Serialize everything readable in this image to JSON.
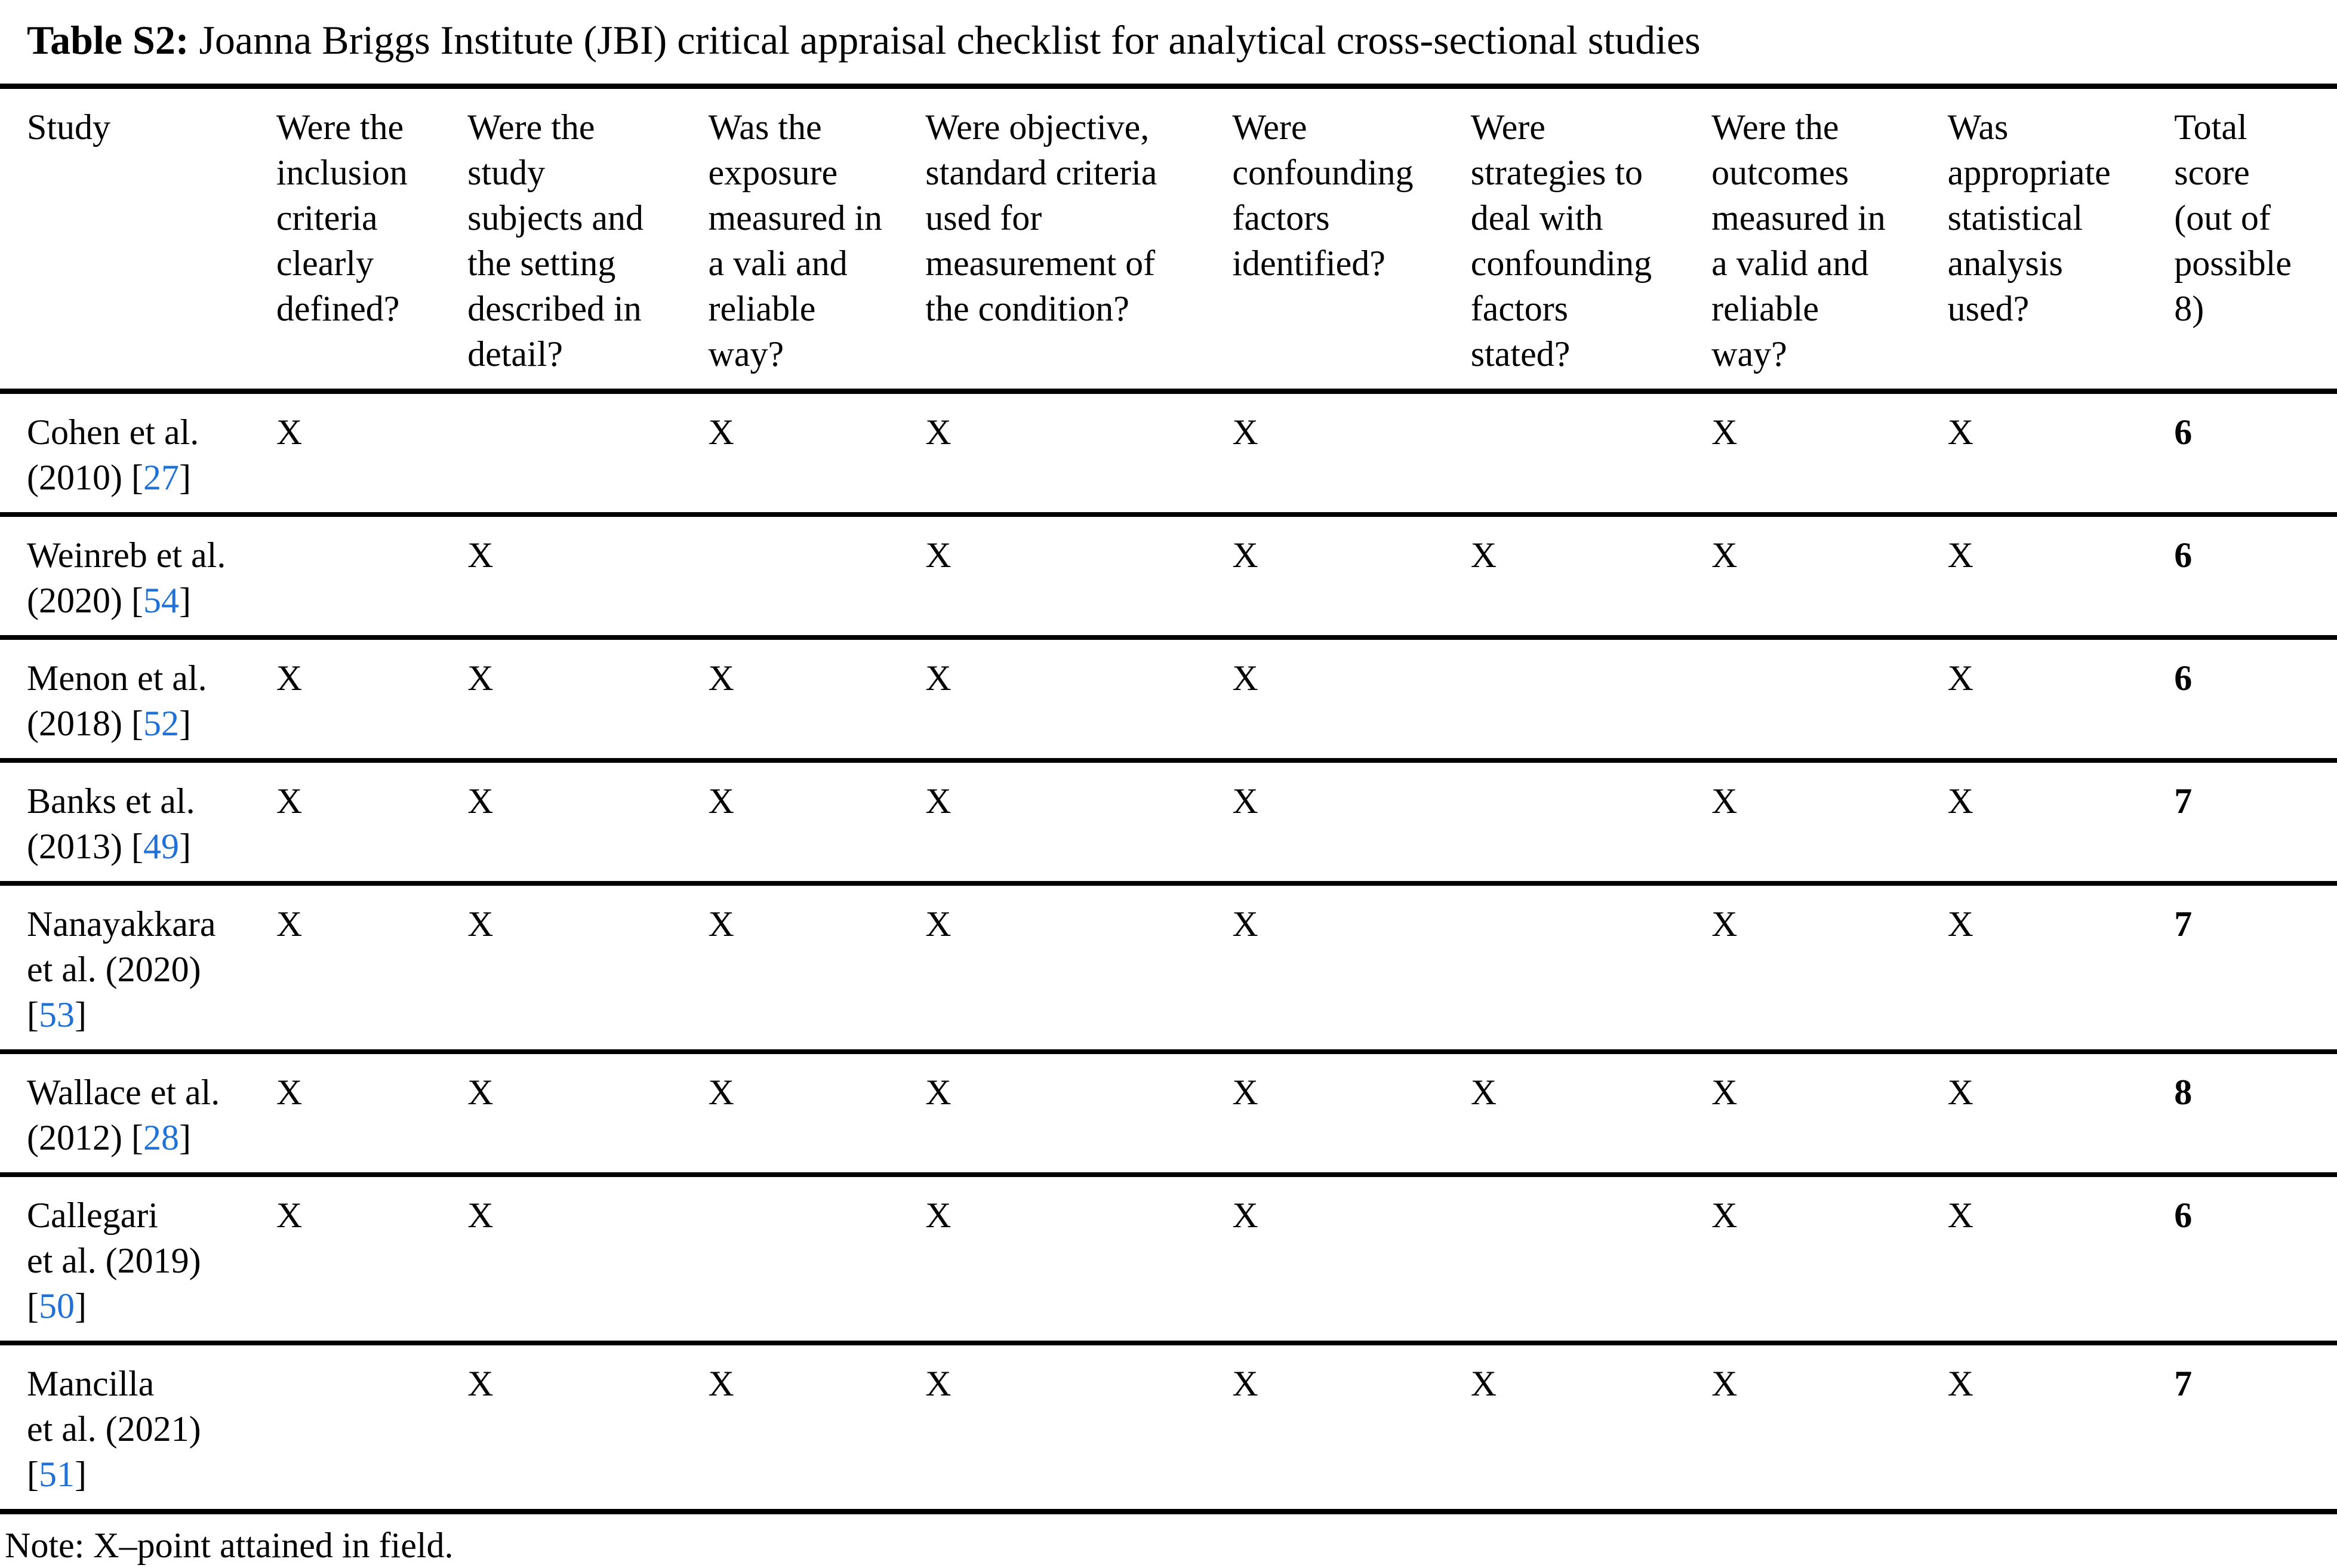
{
  "title": {
    "bold": "Table S2:",
    "rest": " Joanna Briggs Institute (JBI) critical appraisal checklist for analytical cross-sectional studies"
  },
  "colors": {
    "text": "#000000",
    "background": "#FFFFFF",
    "rule": "#000000",
    "reference_link": "#1F71D7"
  },
  "mark_symbol": "X",
  "table": {
    "columns": [
      "Study",
      "Were the\ninclusion\ncriteria\nclearly\ndefined?",
      "Were the\nstudy\nsubjects and\nthe setting\ndescribed in\ndetail?",
      "Was the\nexposure\nmeasured in\na vali and\nreliable\nway?",
      "Were objective,\nstandard criteria\nused for\nmeasurement of\nthe condition?",
      "Were\nconfounding\nfactors\nidentified?",
      "Were\nstrategies to\ndeal with\nconfounding\nfactors\nstated?",
      "Were the\noutcomes\nmeasured in\na valid and\nreliable\nway?",
      "Was\nappropriate\nstatistical\nanalysis\nused?",
      "Total\nscore\n(out of\npossible\n8)"
    ],
    "rows": [
      {
        "study_prefix": "Cohen et al.\n(2010) [",
        "reference": "27",
        "study_suffix": "]",
        "marks": [
          "X",
          "",
          "X",
          "X",
          "X",
          "",
          "X",
          "X"
        ],
        "total": "6"
      },
      {
        "study_prefix": "Weinreb et al.\n(2020) [",
        "reference": "54",
        "study_suffix": "]",
        "marks": [
          "",
          "X",
          "",
          "X",
          "X",
          "X",
          "X",
          "X"
        ],
        "total": "6"
      },
      {
        "study_prefix": "Menon et al.\n(2018) [",
        "reference": "52",
        "study_suffix": "]",
        "marks": [
          "X",
          "X",
          "X",
          "X",
          "X",
          "",
          "",
          "X"
        ],
        "total": "6"
      },
      {
        "study_prefix": "Banks et al.\n(2013) [",
        "reference": "49",
        "study_suffix": "]",
        "marks": [
          "X",
          "X",
          "X",
          "X",
          "X",
          "",
          "X",
          "X"
        ],
        "total": "7"
      },
      {
        "study_prefix": "Nanayakkara\net al. (2020)\n[",
        "reference": "53",
        "study_suffix": "]",
        "marks": [
          "X",
          "X",
          "X",
          "X",
          "X",
          "",
          "X",
          "X"
        ],
        "total": "7"
      },
      {
        "study_prefix": "Wallace et al.\n(2012) [",
        "reference": "28",
        "study_suffix": "]",
        "marks": [
          "X",
          "X",
          "X",
          "X",
          "X",
          "X",
          "X",
          "X"
        ],
        "total": "8"
      },
      {
        "study_prefix": "Callegari\net al. (2019)\n[",
        "reference": "50",
        "study_suffix": "]",
        "marks": [
          "X",
          "X",
          "",
          "X",
          "X",
          "",
          "X",
          "X"
        ],
        "total": "6"
      },
      {
        "study_prefix": "Mancilla\net al. (2021)\n[",
        "reference": "51",
        "study_suffix": "]",
        "marks": [
          "",
          "X",
          "X",
          "X",
          "X",
          "X",
          "X",
          "X"
        ],
        "total": "7"
      }
    ]
  },
  "note": "Note: X–point attained in field."
}
